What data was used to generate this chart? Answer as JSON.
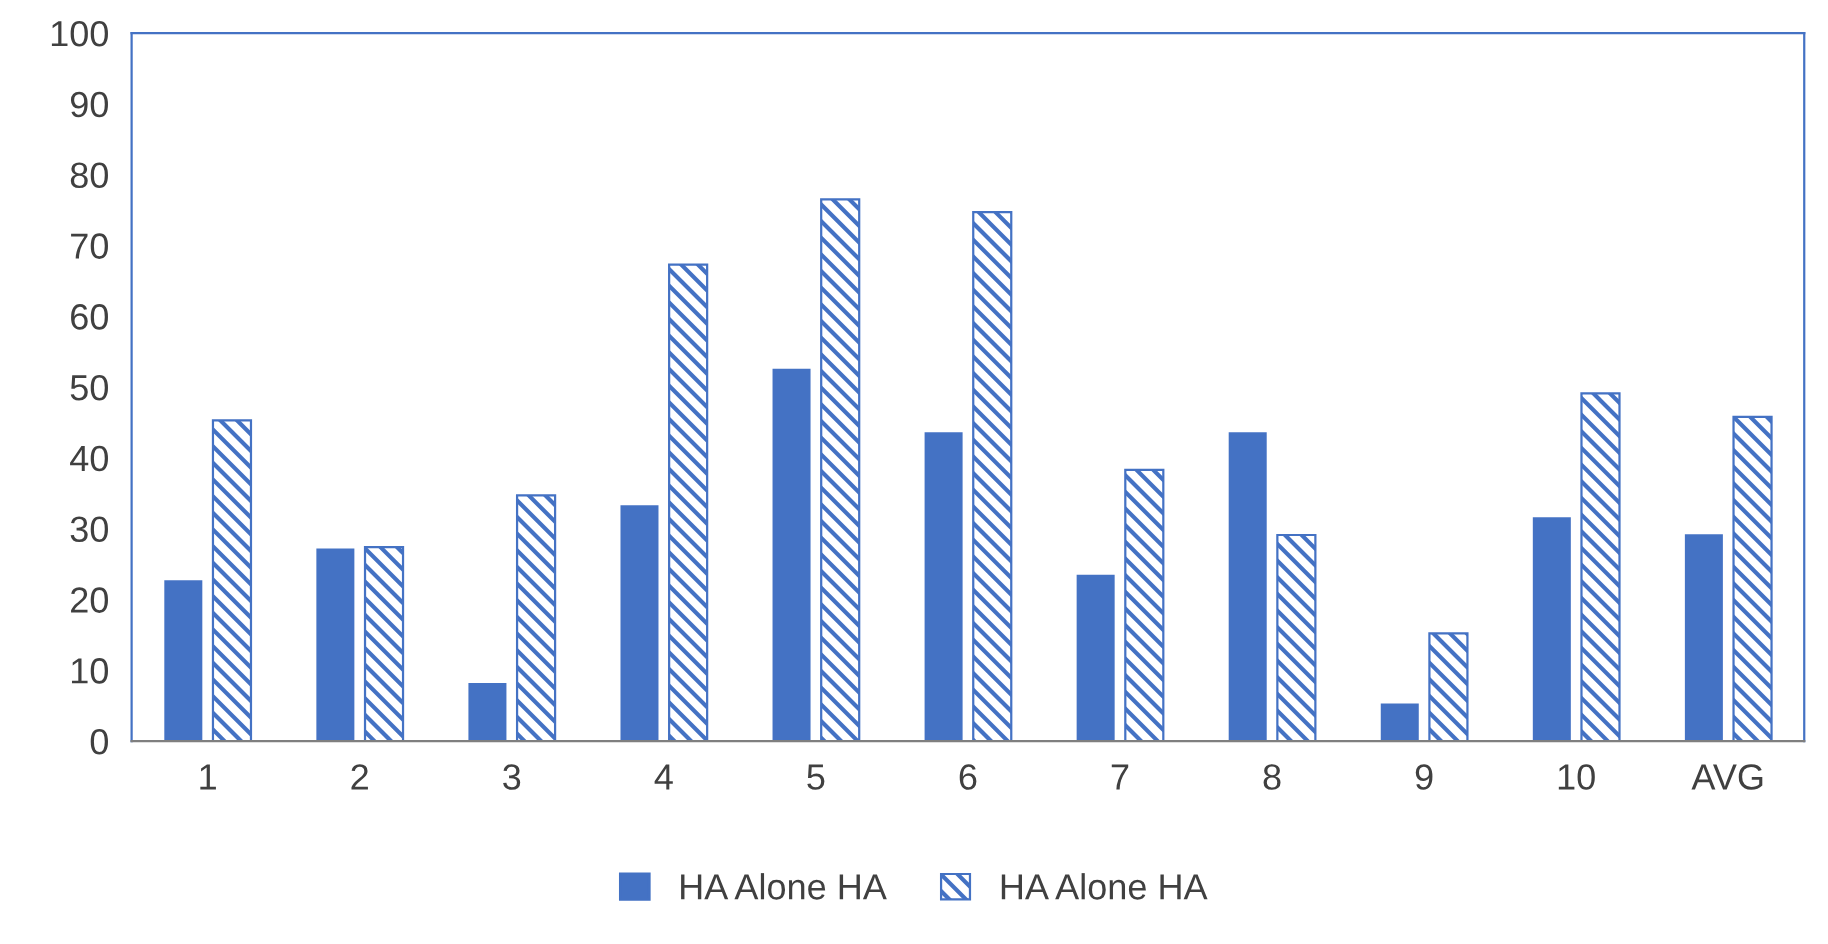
{
  "chart_data": {
    "type": "bar",
    "categories": [
      "1",
      "2",
      "3",
      "4",
      "5",
      "6",
      "7",
      "8",
      "9",
      "10",
      "AVG"
    ],
    "series": [
      {
        "name": "HA Alone HA",
        "color": "#4472c4",
        "values": [
          22.7,
          27.2,
          8.2,
          33.3,
          52.6,
          43.6,
          23.5,
          43.6,
          5.3,
          31.6,
          29.2
        ]
      },
      {
        "name": "HA Alone HA",
        "color": "#4472c4",
        "values": [
          45.3,
          27.4,
          34.7,
          67.3,
          76.5,
          74.7,
          38.3,
          29.1,
          15.2,
          49.1,
          45.8
        ]
      }
    ],
    "ylim": [
      0,
      100
    ],
    "yticks": [
      0,
      10,
      20,
      30,
      40,
      50,
      60,
      70,
      80,
      90,
      100
    ],
    "grid": false,
    "legend": "bottom"
  }
}
